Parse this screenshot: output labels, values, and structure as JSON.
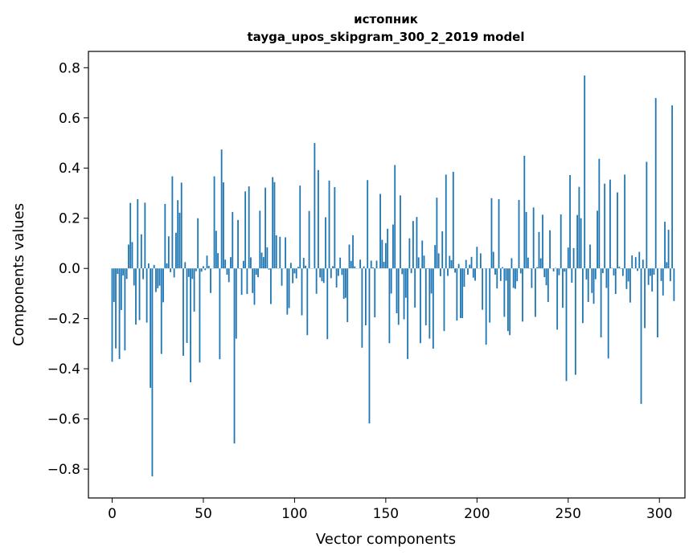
{
  "chart_data": {
    "type": "bar",
    "title_lines": [
      "истопник",
      "tayga_upos_skipgram_300_2_2019 model"
    ],
    "xlabel": "Vector components",
    "ylabel": "Components values",
    "xlim": [
      -13,
      314
    ],
    "ylim": [
      -0.915,
      0.865
    ],
    "x_ticks": [
      0,
      50,
      100,
      150,
      200,
      250,
      300
    ],
    "y_ticks": [
      -0.8,
      -0.6,
      -0.4,
      -0.2,
      0.0,
      0.2,
      0.4,
      0.6,
      0.8
    ],
    "y_tick_labels": [
      "−0.8",
      "−0.6",
      "−0.4",
      "−0.2",
      "0.0",
      "0.2",
      "0.4",
      "0.6",
      "0.8"
    ],
    "bar_color": "#1f77b4",
    "grid": false,
    "values": [
      -0.372,
      -0.134,
      -0.319,
      -0.022,
      -0.361,
      -0.166,
      -0.028,
      -0.327,
      -0.042,
      0.095,
      0.261,
      0.105,
      -0.068,
      -0.224,
      0.276,
      -0.206,
      0.136,
      -0.043,
      0.262,
      -0.216,
      0.02,
      -0.476,
      -0.829,
      0.014,
      -0.094,
      -0.079,
      -0.069,
      -0.341,
      -0.135,
      0.257,
      0.02,
      0.128,
      -0.015,
      0.367,
      -0.036,
      0.142,
      0.272,
      0.222,
      0.342,
      -0.348,
      0.025,
      -0.297,
      -0.034,
      -0.454,
      -0.042,
      -0.172,
      -0.011,
      0.2,
      -0.375,
      -0.013,
      0.009,
      -0.007,
      0.051,
      0.01,
      -0.098,
      -0.001,
      0.367,
      0.15,
      0.061,
      -0.362,
      0.474,
      0.343,
      0.035,
      -0.025,
      -0.055,
      0.045,
      0.225,
      -0.698,
      -0.28,
      0.193,
      -0.002,
      -0.105,
      0.03,
      0.307,
      -0.102,
      0.327,
      0.044,
      -0.098,
      -0.145,
      -0.025,
      -0.035,
      0.23,
      0.063,
      0.045,
      0.322,
      0.084,
      -0.005,
      -0.142,
      0.364,
      0.344,
      0.132,
      -0.001,
      0.126,
      -0.069,
      0.0,
      0.124,
      -0.184,
      -0.158,
      0.022,
      -0.059,
      -0.02,
      -0.04,
      0.006,
      0.33,
      -0.187,
      0.042,
      0.011,
      -0.266,
      0.229,
      0.0,
      0.0,
      0.5,
      -0.101,
      0.392,
      -0.036,
      -0.051,
      -0.058,
      0.204,
      -0.282,
      0.35,
      -0.039,
      0.009,
      0.324,
      -0.076,
      -0.03,
      0.043,
      -0.026,
      -0.121,
      -0.117,
      -0.214,
      0.095,
      0.03,
      0.132,
      0.008,
      0.0,
      -0.001,
      0.035,
      -0.316,
      0.008,
      -0.227,
      0.352,
      -0.618,
      0.031,
      0.004,
      -0.195,
      0.031,
      0.0,
      0.297,
      0.114,
      0.026,
      0.101,
      0.158,
      -0.298,
      -0.1,
      0.175,
      0.412,
      -0.179,
      -0.225,
      0.291,
      -0.023,
      -0.203,
      -0.117,
      -0.361,
      0.12,
      -0.019,
      0.189,
      -0.156,
      0.205,
      0.044,
      -0.298,
      0.111,
      0.051,
      -0.227,
      -0.002,
      -0.28,
      -0.1,
      -0.32,
      0.093,
      0.282,
      0.06,
      -0.031,
      0.148,
      -0.25,
      0.374,
      -0.03,
      0.05,
      0.033,
      0.385,
      -0.017,
      -0.208,
      0.018,
      -0.198,
      -0.198,
      -0.073,
      0.034,
      -0.025,
      0.015,
      0.046,
      -0.037,
      -0.049,
      0.086,
      0.0,
      0.06,
      -0.165,
      0.0,
      -0.304,
      0.0,
      -0.216,
      0.28,
      0.066,
      -0.025,
      -0.08,
      0.276,
      -0.05,
      0.005,
      -0.193,
      -0.049,
      -0.25,
      -0.266,
      0.041,
      -0.078,
      -0.081,
      -0.051,
      0.273,
      -0.02,
      -0.212,
      0.449,
      0.225,
      0.043,
      0.0,
      -0.078,
      0.243,
      -0.193,
      0.005,
      0.145,
      0.04,
      0.214,
      -0.035,
      -0.067,
      -0.134,
      0.152,
      0.0,
      -0.012,
      0.002,
      -0.244,
      -0.027,
      0.215,
      -0.157,
      -0.013,
      -0.449,
      0.083,
      0.372,
      -0.057,
      0.081,
      -0.424,
      0.213,
      0.325,
      0.2,
      -0.218,
      0.769,
      -0.044,
      -0.134,
      0.095,
      -0.098,
      -0.141,
      -0.043,
      0.23,
      0.437,
      -0.275,
      -0.019,
      0.338,
      -0.078,
      -0.359,
      0.354,
      0.002,
      -0.028,
      -0.102,
      0.303,
      0.007,
      -0.002,
      -0.03,
      0.374,
      -0.082,
      -0.052,
      -0.136,
      0.052,
      0.0,
      0.045,
      -0.01,
      0.066,
      -0.54,
      0.035,
      -0.238,
      0.425,
      -0.066,
      -0.03,
      -0.092,
      -0.025,
      0.679,
      -0.275,
      0.001,
      -0.05,
      -0.108,
      0.186,
      0.025,
      0.154,
      -0.051,
      0.65,
      -0.13
    ]
  }
}
